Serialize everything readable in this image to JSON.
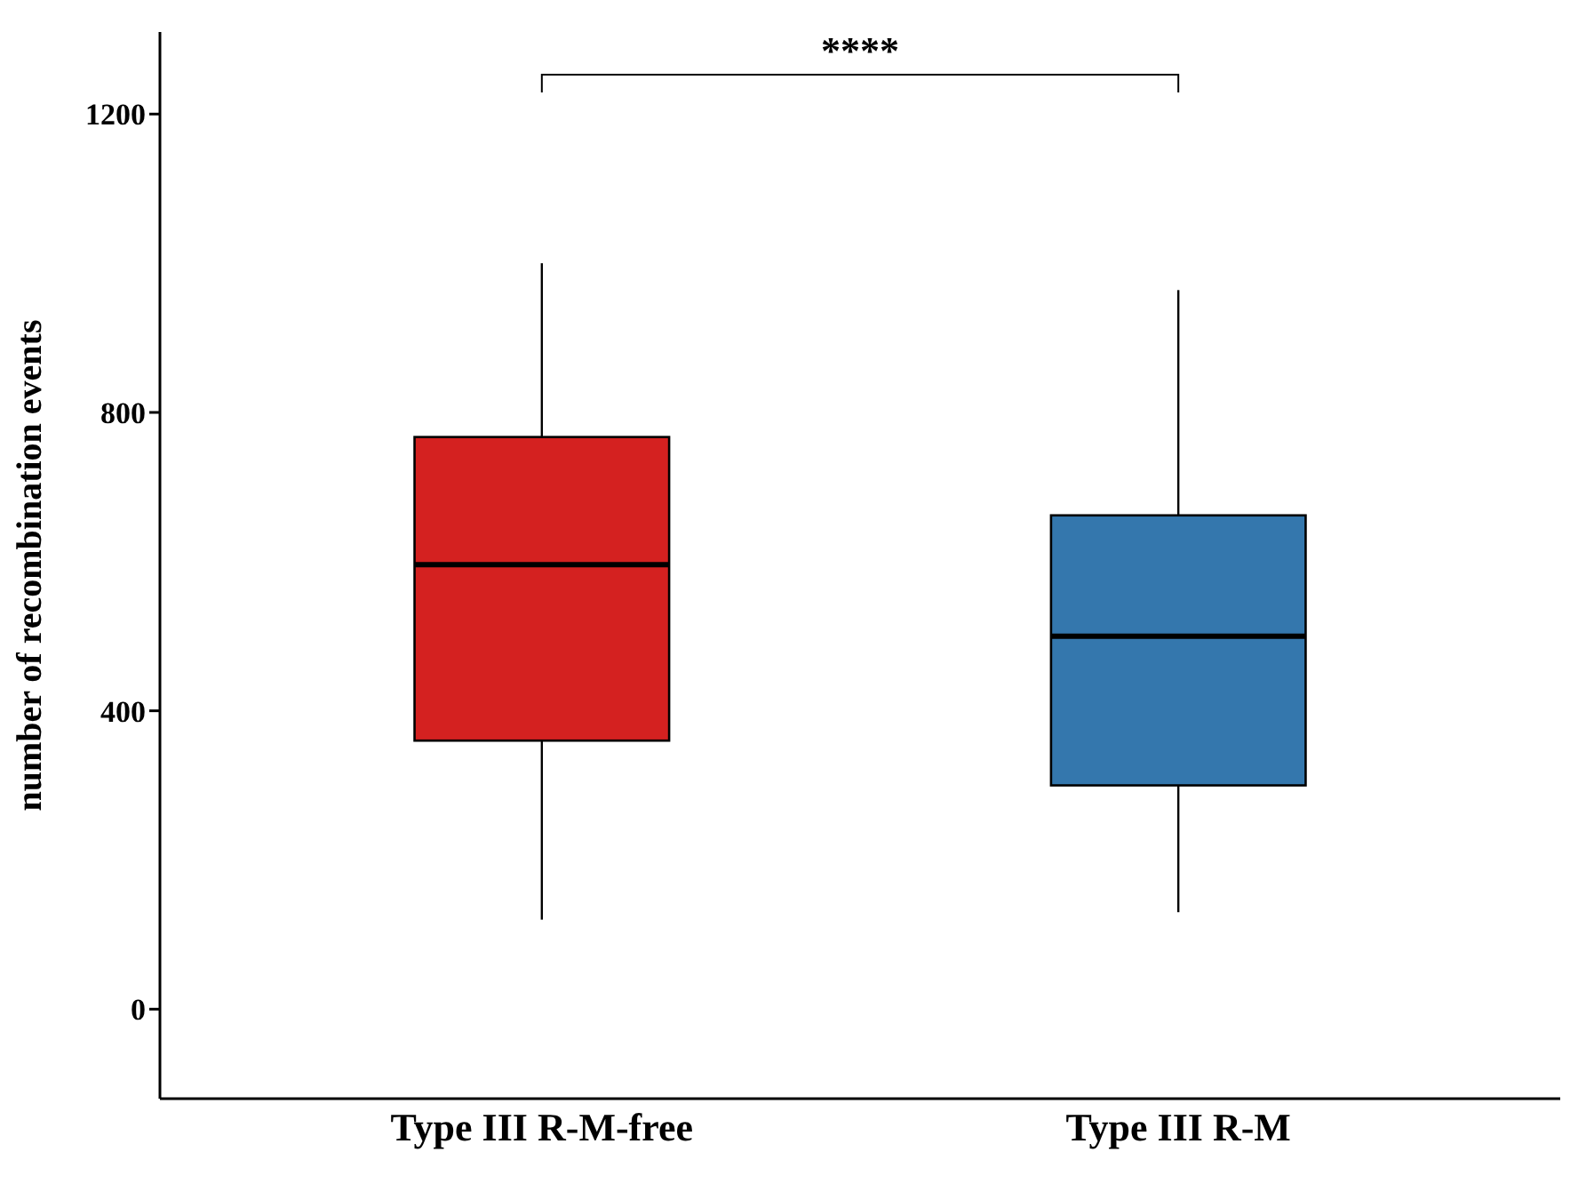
{
  "chart_data": {
    "type": "box",
    "ylabel": "number of recombination events",
    "categories": [
      "Type III R-M-free",
      "Type III R-M"
    ],
    "colors": [
      "#d42120",
      "#3477ad"
    ],
    "boxes": [
      {
        "low": 120,
        "q1": 360,
        "median": 596,
        "q3": 767,
        "high": 1000
      },
      {
        "low": 130,
        "q1": 300,
        "median": 500,
        "q3": 662,
        "high": 964
      }
    ],
    "ylim": [
      -120,
      1310
    ],
    "yticks": [
      0,
      400,
      800,
      1200
    ],
    "annotations": [
      "****"
    ]
  }
}
